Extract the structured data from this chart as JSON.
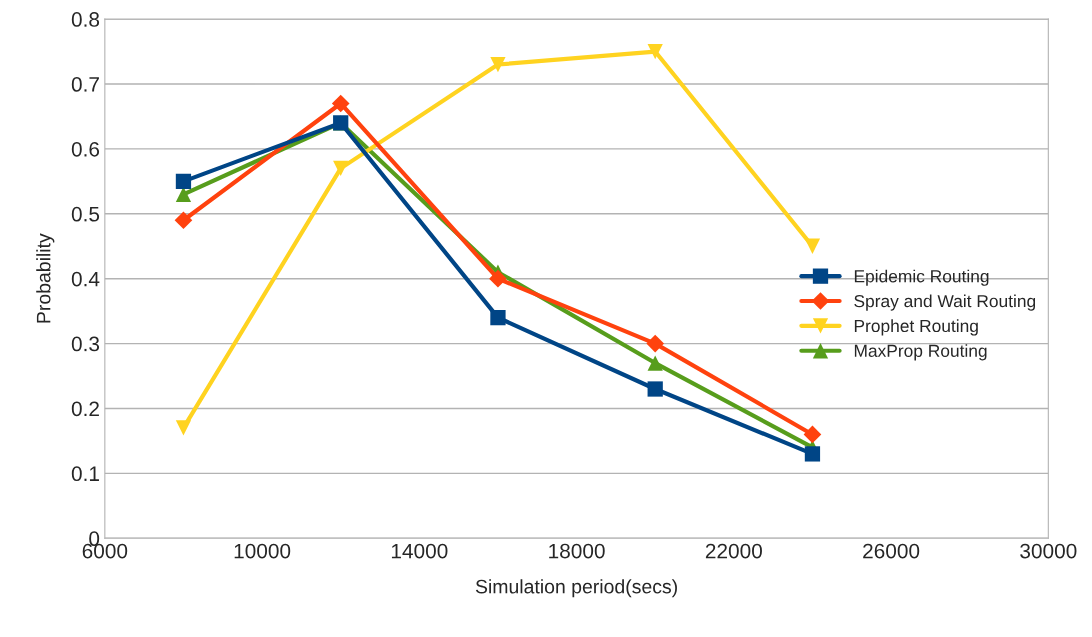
{
  "chart_data": {
    "type": "line",
    "xlabel": "Simulation period(secs)",
    "ylabel": "Probability",
    "x": [
      8000,
      12000,
      16000,
      20000,
      24000
    ],
    "series": [
      {
        "name": "Epidemic Routing",
        "color": "#004586",
        "marker": "square",
        "values": [
          0.55,
          0.64,
          0.34,
          0.23,
          0.13
        ]
      },
      {
        "name": "Spray and Wait Routing",
        "color": "#ff420e",
        "marker": "diamond",
        "values": [
          0.49,
          0.67,
          0.4,
          0.3,
          0.16
        ]
      },
      {
        "name": "Prophet Routing",
        "color": "#ffd320",
        "marker": "triangle_down",
        "values": [
          0.17,
          0.57,
          0.73,
          0.75,
          0.45
        ]
      },
      {
        "name": "MaxProp Routing",
        "color": "#579d1c",
        "marker": "triangle",
        "values": [
          0.53,
          0.64,
          0.41,
          0.27,
          0.14
        ]
      }
    ],
    "xlim": [
      6000,
      30000
    ],
    "xticks": [
      6000,
      10000,
      14000,
      18000,
      22000,
      26000,
      30000
    ],
    "ylim": [
      0,
      0.8
    ],
    "yticks": [
      0,
      0.1,
      0.2,
      0.3,
      0.4,
      0.5,
      0.6,
      0.7,
      0.8
    ],
    "grid": "y",
    "legend": "right"
  }
}
